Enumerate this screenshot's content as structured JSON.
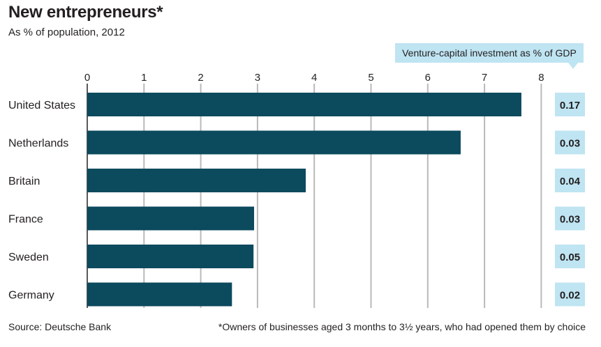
{
  "header": {
    "title": "New entrepreneurs*",
    "subtitle": "As % of population, 2012"
  },
  "vc_column": {
    "header": "Venture-capital investment as % of GDP",
    "background": "#bfe4f2"
  },
  "footer": {
    "source": "Source: Deutsche Bank",
    "footnote": "*Owners of businesses aged 3 months to 3½ years, who had opened them by choice"
  },
  "colors": {
    "bar": "#0c4a5e",
    "grid": "#b9b9b9",
    "text": "#231f20",
    "value_box": "#bfe4f2"
  },
  "chart_data": {
    "type": "bar",
    "orientation": "horizontal",
    "title": "New entrepreneurs*",
    "subtitle": "As % of population, 2012",
    "categories": [
      "United States",
      "Netherlands",
      "Britain",
      "France",
      "Sweden",
      "Germany"
    ],
    "values": [
      7.65,
      6.58,
      3.85,
      2.94,
      2.93,
      2.55
    ],
    "xlim": [
      0,
      8
    ],
    "xticks": [
      0,
      1,
      2,
      3,
      4,
      5,
      6,
      7,
      8
    ],
    "grid": true,
    "secondary_column": {
      "name": "Venture-capital investment as % of GDP",
      "values": [
        "0.17",
        "0.03",
        "0.04",
        "0.03",
        "0.05",
        "0.02"
      ]
    }
  }
}
